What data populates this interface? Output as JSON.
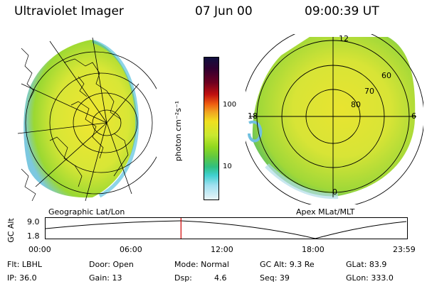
{
  "header": {
    "title": "Ultraviolet Imager",
    "date": "07 Jun 00",
    "time": "09:00:39 UT"
  },
  "left_panel": {
    "caption": "Geographic Lat/Lon"
  },
  "right_panel": {
    "caption": "Apex MLat/MLT",
    "mlt_labels": {
      "top": "12",
      "left": "18",
      "right": "6",
      "bottom": "0"
    },
    "lat_labels": [
      "60",
      "70",
      "80"
    ]
  },
  "colorbar": {
    "unit_label": "photon cm⁻²s⁻¹",
    "ticks": [
      "100",
      "10"
    ],
    "colors": [
      "#101040",
      "#300030",
      "#700020",
      "#c01010",
      "#f06010",
      "#f0a020",
      "#f0e020",
      "#c8e830",
      "#90d820",
      "#60c840",
      "#30c080",
      "#40d0d0",
      "#a0e0f0",
      "#e8f4f8"
    ]
  },
  "altitude_plot": {
    "y_axis_label": "GC Alt",
    "y_ticks": [
      "9.0",
      "1.8"
    ],
    "x_ticks": [
      "00:00",
      "06:00",
      "12:00",
      "18:00",
      "23:59"
    ],
    "marker_time_hours": 9.01,
    "marker_color": "#d00000"
  },
  "status": {
    "flt": "Flt: LBHL",
    "door": "Door: Open",
    "mode": "Mode: Normal",
    "gc_alt": "GC Alt: 9.3 Re",
    "glat": "GLat:  83.9",
    "ip": "IP: 36.0",
    "gain": "Gain: 13",
    "dsp_label": "Dsp:",
    "dsp_value": "4.6",
    "seq": "Seq: 39",
    "glon": "GLon: 333.0"
  }
}
